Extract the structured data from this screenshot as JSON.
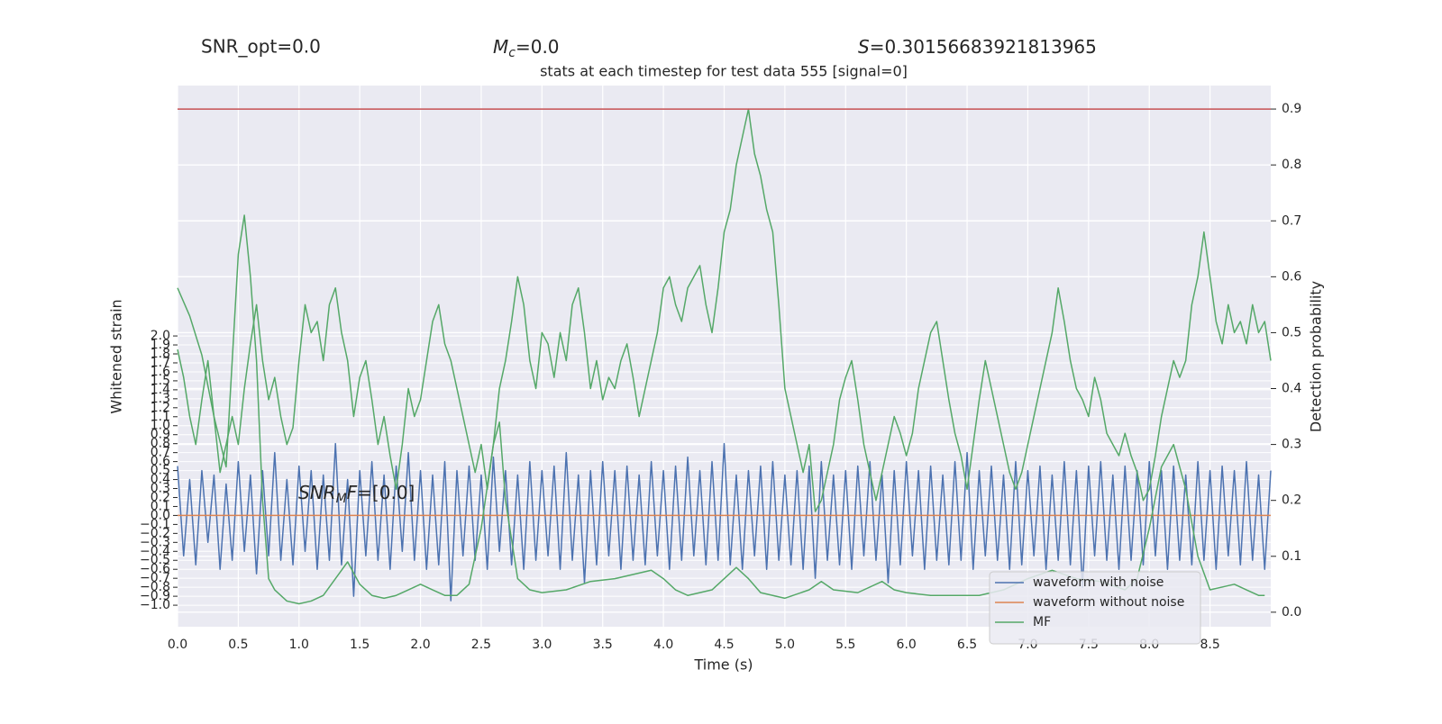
{
  "chart_data": {
    "type": "line",
    "title": "stats at each timestep for test data 555 [signal=0]",
    "snr_opt": "SNR_opt=0.0",
    "mc_annotation": {
      "symbol": "M",
      "subscript": "c",
      "text": "=0.0"
    },
    "s_annotation": {
      "symbol": "S",
      "text": "=0.30156683921813965"
    },
    "snr_mf_annotation": {
      "symbol": "SNR",
      "subscript": "M",
      "suffix": "F",
      "text": "=[0.0]"
    },
    "xlabel": "Time (s)",
    "ylabel": "Whitened strain",
    "y2label": "Detection probability",
    "xlim": [
      0,
      9.0
    ],
    "ylim": [
      -1.24,
      4.79
    ],
    "y2lim": [
      -0.026,
      0.942
    ],
    "xticks": [
      {
        "value": 0,
        "label": "0.0"
      },
      0.5,
      {
        "value": 1,
        "label": "1.0"
      },
      1.5,
      {
        "value": 2,
        "label": "2.0"
      },
      2.5,
      {
        "value": 3,
        "label": "3.0"
      },
      3.5,
      {
        "value": 4,
        "label": "4.0"
      },
      4.5,
      {
        "value": 5,
        "label": "5.0"
      },
      5.5,
      {
        "value": 6,
        "label": "6.0"
      },
      6.5,
      {
        "value": 7,
        "label": "7.0"
      },
      7.5,
      {
        "value": 8,
        "label": "8.0"
      },
      8.5
    ],
    "yticks": [
      {
        "value": -1,
        "label": "−1.0"
      },
      {
        "value": -0.9,
        "label": "−0.9"
      },
      {
        "value": -0.8,
        "label": "−0.8"
      },
      {
        "value": -0.7,
        "label": "−0.7"
      },
      {
        "value": -0.6,
        "label": "−0.6"
      },
      {
        "value": -0.5,
        "label": "−0.5"
      },
      {
        "value": -0.4,
        "label": "−0.4"
      },
      {
        "value": -0.3,
        "label": "−0.3"
      },
      {
        "value": -0.2,
        "label": "−0.2"
      },
      {
        "value": -0.1,
        "label": "−0.1"
      },
      {
        "value": 0,
        "label": "0.0"
      },
      0.1,
      0.2,
      0.3,
      0.4,
      0.5,
      0.6,
      0.7,
      0.8,
      0.9,
      {
        "value": 1,
        "label": "1.0"
      },
      1.1,
      1.2,
      1.3,
      1.4,
      1.5,
      1.6,
      1.7,
      1.8,
      1.9,
      {
        "value": 2,
        "label": "2.0"
      }
    ],
    "y2ticks": [
      {
        "value": 0,
        "label": "0.0"
      },
      0.1,
      0.2,
      0.3,
      0.4,
      0.5,
      0.6,
      0.7,
      0.8,
      0.9
    ],
    "grid": true,
    "legend_loc": "lower right",
    "x": [
      0,
      0.05,
      0.1,
      0.15,
      0.2,
      0.25,
      0.3,
      0.35,
      0.4,
      0.45,
      0.5,
      0.55,
      0.6,
      0.65,
      0.7,
      0.75,
      0.8,
      0.85,
      0.9,
      0.95,
      1,
      1.05,
      1.1,
      1.15,
      1.2,
      1.25,
      1.3,
      1.35,
      1.4,
      1.45,
      1.5,
      1.55,
      1.6,
      1.65,
      1.7,
      1.75,
      1.8,
      1.85,
      1.9,
      1.95,
      2,
      2.05,
      2.1,
      2.15,
      2.2,
      2.25,
      2.3,
      2.35,
      2.4,
      2.45,
      2.5,
      2.55,
      2.6,
      2.65,
      2.7,
      2.75,
      2.8,
      2.85,
      2.9,
      2.95,
      3,
      3.05,
      3.1,
      3.15,
      3.2,
      3.25,
      3.3,
      3.35,
      3.4,
      3.45,
      3.5,
      3.55,
      3.6,
      3.65,
      3.7,
      3.75,
      3.8,
      3.85,
      3.9,
      3.95,
      4,
      4.05,
      4.1,
      4.15,
      4.2,
      4.25,
      4.3,
      4.35,
      4.4,
      4.45,
      4.5,
      4.55,
      4.6,
      4.65,
      4.7,
      4.75,
      4.8,
      4.85,
      4.9,
      4.95,
      5,
      5.05,
      5.1,
      5.15,
      5.2,
      5.25,
      5.3,
      5.35,
      5.4,
      5.45,
      5.5,
      5.55,
      5.6,
      5.65,
      5.7,
      5.75,
      5.8,
      5.85,
      5.9,
      5.95,
      6,
      6.05,
      6.1,
      6.15,
      6.2,
      6.25,
      6.3,
      6.35,
      6.4,
      6.45,
      6.5,
      6.55,
      6.6,
      6.65,
      6.7,
      6.75,
      6.8,
      6.85,
      6.9,
      6.95,
      7,
      7.05,
      7.1,
      7.15,
      7.2,
      7.25,
      7.3,
      7.35,
      7.4,
      7.45,
      7.5,
      7.55,
      7.6,
      7.65,
      7.7,
      7.75,
      7.8,
      7.85,
      7.9,
      7.95,
      8,
      8.05,
      8.1,
      8.15,
      8.2,
      8.25,
      8.3,
      8.35,
      8.4,
      8.45,
      8.5,
      8.55,
      8.6,
      8.65,
      8.7,
      8.75,
      8.8,
      8.85,
      8.9,
      8.95,
      9
    ],
    "series": [
      {
        "name": "waveform with noise",
        "color": "#4c72b0",
        "axis": "y",
        "values": [
          0.55,
          -0.45,
          0.4,
          -0.55,
          0.5,
          -0.3,
          0.45,
          -0.6,
          0.35,
          -0.5,
          0.6,
          -0.4,
          0.45,
          -0.65,
          0.5,
          -0.45,
          0.7,
          -0.5,
          0.4,
          -0.55,
          0.55,
          -0.4,
          0.5,
          -0.6,
          0.45,
          -0.5,
          0.8,
          -0.55,
          0.4,
          -0.9,
          0.5,
          -0.45,
          0.6,
          -0.5,
          0.45,
          -0.6,
          0.55,
          -0.4,
          0.7,
          -0.5,
          0.5,
          -0.6,
          0.45,
          -0.55,
          0.6,
          -0.95,
          0.5,
          -0.45,
          0.55,
          -0.5,
          0.45,
          -0.6,
          0.65,
          -0.4,
          0.5,
          -0.55,
          0.45,
          -0.6,
          0.6,
          -0.5,
          0.5,
          -0.45,
          0.55,
          -0.6,
          0.7,
          -0.5,
          0.45,
          -0.75,
          0.5,
          -0.55,
          0.6,
          -0.45,
          0.5,
          -0.6,
          0.55,
          -0.5,
          0.45,
          -0.55,
          0.6,
          -0.45,
          0.5,
          -0.6,
          0.55,
          -0.5,
          0.65,
          -0.45,
          0.5,
          -0.55,
          0.6,
          -0.5,
          0.8,
          -0.55,
          0.45,
          -0.6,
          0.5,
          -0.45,
          0.55,
          -0.6,
          0.6,
          -0.5,
          0.45,
          -0.55,
          0.5,
          -0.6,
          0.55,
          -0.7,
          0.6,
          -0.5,
          0.45,
          -0.55,
          0.5,
          -0.6,
          0.55,
          -0.45,
          0.6,
          -0.5,
          0.45,
          -0.75,
          0.5,
          -0.55,
          0.6,
          -0.45,
          0.5,
          -0.6,
          0.55,
          -0.5,
          0.45,
          -0.55,
          0.6,
          -0.5,
          0.7,
          -0.6,
          0.5,
          -0.45,
          0.55,
          -0.5,
          0.45,
          -0.6,
          0.6,
          -0.55,
          0.5,
          -0.45,
          0.55,
          -0.6,
          0.45,
          -0.5,
          0.6,
          -0.55,
          0.5,
          -0.8,
          0.55,
          -0.45,
          0.6,
          -0.5,
          0.45,
          -0.6,
          0.55,
          -0.5,
          0.5,
          -0.55,
          0.6,
          -0.45,
          0.5,
          -0.6,
          0.55,
          -0.5,
          0.45,
          -0.55,
          0.6,
          -0.5,
          0.5,
          -0.6,
          0.55,
          -0.45,
          0.5,
          -0.55,
          0.6,
          -0.5,
          0.45,
          -0.6,
          0.5
        ]
      },
      {
        "name": "waveform without noise",
        "color": "#dd8452",
        "axis": "y",
        "x": [
          0,
          9.0
        ],
        "values": [
          0,
          0
        ]
      },
      {
        "name": "MF",
        "color": "#55a868",
        "axis": "y2",
        "values": [
          0.47,
          0.42,
          0.35,
          0.3,
          0.38,
          0.45,
          0.35,
          0.25,
          0.3,
          0.35,
          0.3,
          0.4,
          0.48,
          0.55,
          0.45,
          0.38,
          0.42,
          0.35,
          0.3,
          0.33,
          0.45,
          0.55,
          0.5,
          0.52,
          0.45,
          0.55,
          0.58,
          0.5,
          0.45,
          0.35,
          0.42,
          0.45,
          0.38,
          0.3,
          0.35,
          0.28,
          0.22,
          0.3,
          0.4,
          0.35,
          0.38,
          0.45,
          0.52,
          0.55,
          0.48,
          0.45,
          0.4,
          0.35,
          0.3,
          0.25,
          0.3,
          0.22,
          0.3,
          0.4,
          0.45,
          0.52,
          0.6,
          0.55,
          0.45,
          0.4,
          0.5,
          0.48,
          0.42,
          0.5,
          0.45,
          0.55,
          0.58,
          0.5,
          0.4,
          0.45,
          0.38,
          0.42,
          0.4,
          0.45,
          0.48,
          0.42,
          0.35,
          0.4,
          0.45,
          0.5,
          0.58,
          0.6,
          0.55,
          0.52,
          0.58,
          0.6,
          0.62,
          0.55,
          0.5,
          0.58,
          0.68,
          0.72,
          0.8,
          0.85,
          0.9,
          0.82,
          0.78,
          0.72,
          0.68,
          0.55,
          0.4,
          0.35,
          0.3,
          0.25,
          0.3,
          0.18,
          0.2,
          0.25,
          0.3,
          0.38,
          0.42,
          0.45,
          0.38,
          0.3,
          0.25,
          0.2,
          0.25,
          0.3,
          0.35,
          0.32,
          0.28,
          0.32,
          0.4,
          0.45,
          0.5,
          0.52,
          0.45,
          0.38,
          0.32,
          0.28,
          0.22,
          0.3,
          0.38,
          0.45,
          0.4,
          0.35,
          0.3,
          0.25,
          0.22,
          0.25,
          0.3,
          0.35,
          0.4,
          0.45,
          0.5,
          0.58,
          0.52,
          0.45,
          0.4,
          0.38,
          0.35,
          0.42,
          0.38,
          0.32,
          0.3,
          0.28,
          0.32,
          0.28,
          0.25,
          0.2,
          0.22,
          0.28,
          0.35,
          0.4,
          0.45,
          0.42,
          0.45,
          0.55,
          0.6,
          0.68,
          0.6,
          0.52,
          0.48,
          0.55,
          0.5,
          0.52,
          0.48,
          0.55,
          0.5,
          0.52,
          0.45
        ]
      },
      {
        "color": "#55a868",
        "axis": "y2",
        "x": [
          0,
          0.1,
          0.2,
          0.3,
          0.4,
          0.5,
          0.55,
          0.6,
          0.65,
          0.7,
          0.75,
          0.8,
          0.9,
          1,
          1.1,
          1.2,
          1.3,
          1.4,
          1.5,
          1.6,
          1.7,
          1.8,
          1.9,
          2,
          2.1,
          2.2,
          2.3,
          2.4,
          2.5,
          2.6,
          2.65,
          2.7,
          2.8,
          2.9,
          3,
          3.2,
          3.4,
          3.6,
          3.8,
          3.9,
          4,
          4.1,
          4.2,
          4.4,
          4.6,
          4.7,
          4.8,
          5,
          5.2,
          5.3,
          5.4,
          5.6,
          5.8,
          5.9,
          6,
          6.2,
          6.4,
          6.6,
          6.8,
          7,
          7.2,
          7.4,
          7.6,
          7.8,
          7.9,
          8,
          8.1,
          8.2,
          8.3,
          8.4,
          8.5,
          8.6,
          8.7,
          8.8,
          8.9,
          8.95
        ],
        "values": [
          0.58,
          0.53,
          0.46,
          0.35,
          0.26,
          0.64,
          0.71,
          0.6,
          0.45,
          0.2,
          0.06,
          0.04,
          0.02,
          0.015,
          0.02,
          0.03,
          0.06,
          0.09,
          0.05,
          0.03,
          0.025,
          0.03,
          0.04,
          0.05,
          0.04,
          0.03,
          0.03,
          0.05,
          0.15,
          0.3,
          0.34,
          0.2,
          0.06,
          0.04,
          0.035,
          0.04,
          0.055,
          0.06,
          0.07,
          0.075,
          0.06,
          0.04,
          0.03,
          0.04,
          0.08,
          0.06,
          0.035,
          0.025,
          0.04,
          0.055,
          0.04,
          0.035,
          0.055,
          0.04,
          0.035,
          0.03,
          0.03,
          0.03,
          0.04,
          0.06,
          0.075,
          0.06,
          0.055,
          0.04,
          0.06,
          0.15,
          0.26,
          0.3,
          0.22,
          0.1,
          0.04,
          0.045,
          0.05,
          0.04,
          0.03,
          0.03
        ]
      },
      {
        "color": "#c44e52",
        "axis": "y2",
        "x": [
          0,
          9.0
        ],
        "values": [
          0.9,
          0.9
        ]
      }
    ]
  }
}
